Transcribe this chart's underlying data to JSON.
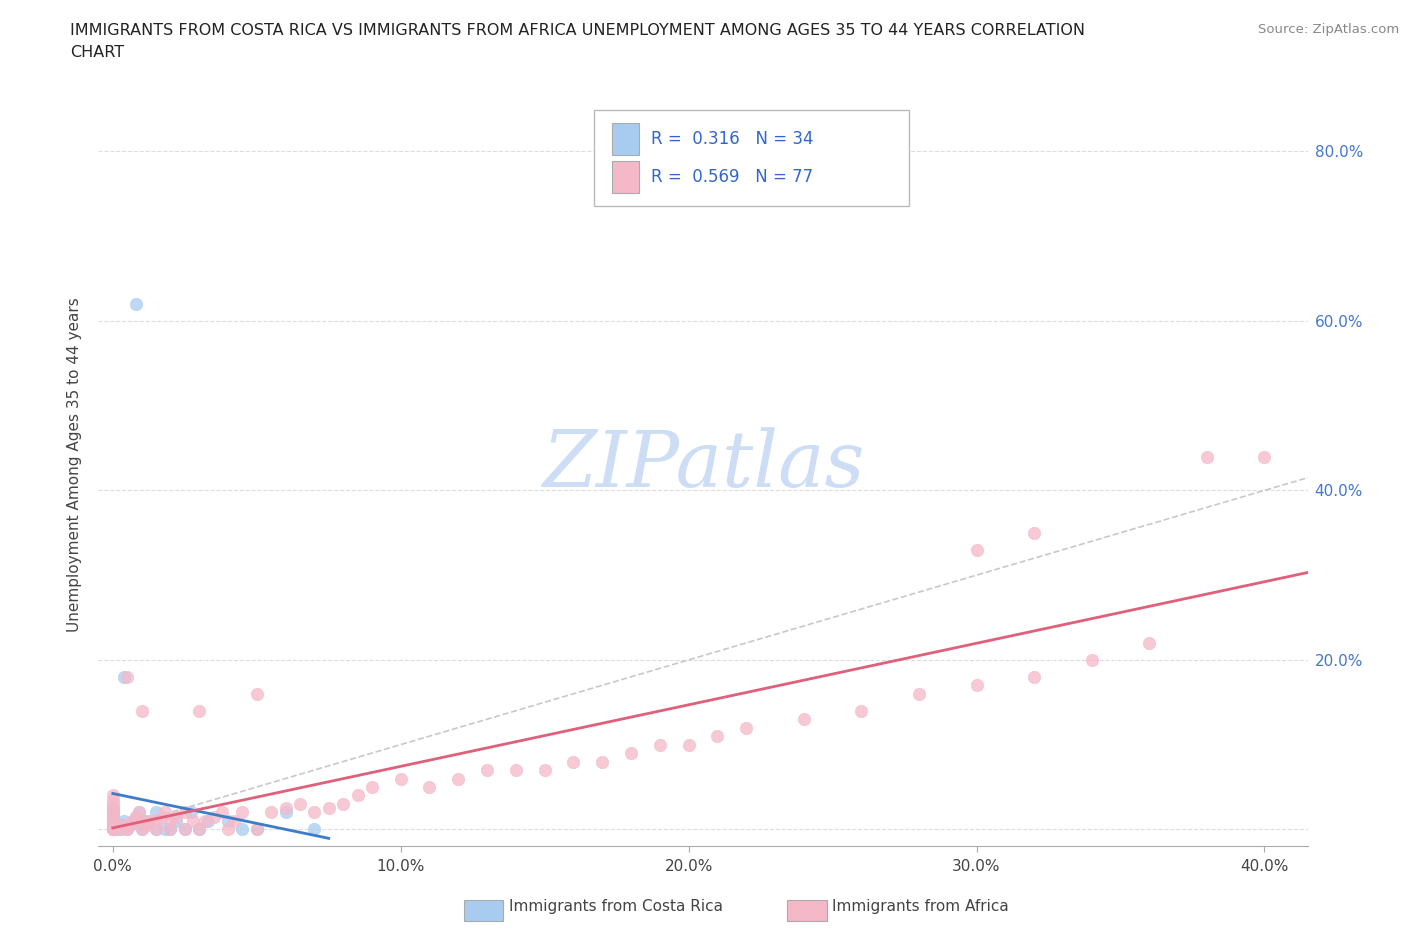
{
  "title_line1": "IMMIGRANTS FROM COSTA RICA VS IMMIGRANTS FROM AFRICA UNEMPLOYMENT AMONG AGES 35 TO 44 YEARS CORRELATION",
  "title_line2": "CHART",
  "source": "Source: ZipAtlas.com",
  "ylabel": "Unemployment Among Ages 35 to 44 years",
  "x_tick_vals": [
    0.0,
    0.1,
    0.2,
    0.3,
    0.4
  ],
  "x_tick_labels": [
    "0.0%",
    "10.0%",
    "20.0%",
    "30.0%",
    "40.0%"
  ],
  "y_tick_vals": [
    0.0,
    0.2,
    0.4,
    0.6,
    0.8
  ],
  "y_tick_labels": [
    "",
    "20.0%",
    "40.0%",
    "60.0%",
    "80.0%"
  ],
  "xlim": [
    -0.005,
    0.415
  ],
  "ylim": [
    -0.02,
    0.88
  ],
  "legend_text1": "R =  0.316   N = 34",
  "legend_text2": "R =  0.569   N = 77",
  "legend_label1": "Immigrants from Costa Rica",
  "legend_label2": "Immigrants from Africa",
  "color1": "#a8ccf0",
  "color2": "#f5b8c8",
  "line_color1": "#3d7cc9",
  "line_color2": "#e0607a",
  "diag_color": "#bbbbbb",
  "watermark_color": "#ccddf5",
  "cr_x": [
    0.0,
    0.0,
    0.0,
    0.0,
    0.0,
    0.0,
    0.0,
    0.002,
    0.003,
    0.004,
    0.005,
    0.006,
    0.007,
    0.008,
    0.009,
    0.01,
    0.011,
    0.012,
    0.015,
    0.015,
    0.018,
    0.02,
    0.022,
    0.025,
    0.027,
    0.03,
    0.033,
    0.04,
    0.045,
    0.05,
    0.06,
    0.07,
    0.008,
    0.004
  ],
  "cr_y": [
    0.0,
    0.0,
    0.005,
    0.01,
    0.015,
    0.02,
    0.025,
    0.0,
    0.005,
    0.01,
    0.0,
    0.005,
    0.01,
    0.015,
    0.02,
    0.0,
    0.005,
    0.01,
    0.0,
    0.02,
    0.0,
    0.0,
    0.01,
    0.0,
    0.02,
    0.0,
    0.01,
    0.01,
    0.0,
    0.0,
    0.02,
    0.0,
    0.62,
    0.18
  ],
  "af_x": [
    0.0,
    0.0,
    0.0,
    0.0,
    0.0,
    0.0,
    0.0,
    0.0,
    0.0,
    0.0,
    0.0,
    0.0,
    0.003,
    0.004,
    0.005,
    0.006,
    0.007,
    0.008,
    0.009,
    0.01,
    0.01,
    0.012,
    0.013,
    0.015,
    0.015,
    0.017,
    0.018,
    0.02,
    0.02,
    0.022,
    0.025,
    0.025,
    0.028,
    0.03,
    0.032,
    0.035,
    0.038,
    0.04,
    0.042,
    0.045,
    0.05,
    0.055,
    0.06,
    0.065,
    0.07,
    0.075,
    0.08,
    0.085,
    0.09,
    0.1,
    0.11,
    0.12,
    0.13,
    0.14,
    0.15,
    0.16,
    0.17,
    0.18,
    0.19,
    0.2,
    0.21,
    0.22,
    0.24,
    0.26,
    0.28,
    0.3,
    0.32,
    0.34,
    0.36,
    0.38,
    0.4,
    0.3,
    0.32,
    0.005,
    0.01,
    0.03,
    0.05
  ],
  "af_y": [
    0.0,
    0.0,
    0.0,
    0.0,
    0.005,
    0.01,
    0.015,
    0.02,
    0.025,
    0.03,
    0.035,
    0.04,
    0.0,
    0.005,
    0.0,
    0.005,
    0.01,
    0.015,
    0.02,
    0.0,
    0.01,
    0.005,
    0.01,
    0.0,
    0.01,
    0.015,
    0.02,
    0.0,
    0.01,
    0.015,
    0.0,
    0.02,
    0.01,
    0.0,
    0.01,
    0.015,
    0.02,
    0.0,
    0.01,
    0.02,
    0.0,
    0.02,
    0.025,
    0.03,
    0.02,
    0.025,
    0.03,
    0.04,
    0.05,
    0.06,
    0.05,
    0.06,
    0.07,
    0.07,
    0.07,
    0.08,
    0.08,
    0.09,
    0.1,
    0.1,
    0.11,
    0.12,
    0.13,
    0.14,
    0.16,
    0.17,
    0.18,
    0.2,
    0.22,
    0.44,
    0.44,
    0.33,
    0.35,
    0.18,
    0.14,
    0.14,
    0.16
  ]
}
